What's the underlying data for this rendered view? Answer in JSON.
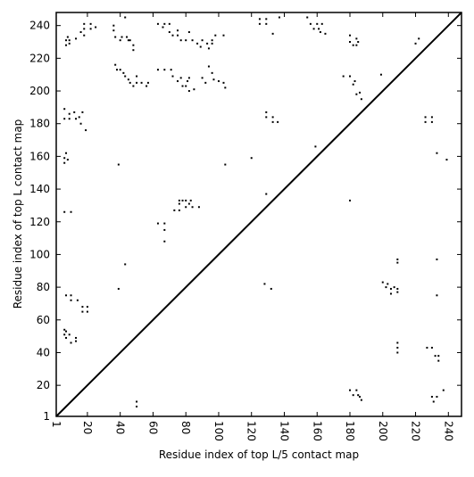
{
  "chart_data": {
    "type": "scatter",
    "xlabel": "Residue index of top L/5 contact map",
    "ylabel": "Residue index of top L contact map",
    "color": "#000000",
    "x": [
      7,
      7,
      8,
      9,
      9,
      13,
      16,
      18,
      18,
      18,
      22,
      22,
      25,
      36,
      36,
      37,
      40,
      41,
      44,
      45,
      43,
      48,
      48,
      46,
      63,
      66,
      67,
      70,
      70,
      72,
      75,
      75,
      77,
      80,
      82,
      84,
      87,
      89,
      90,
      93,
      94,
      96,
      96,
      98,
      103,
      37,
      38,
      40,
      42,
      43,
      45,
      46,
      48,
      50,
      50,
      53,
      56,
      57,
      63,
      67,
      71,
      72,
      75,
      77,
      78,
      80,
      81,
      82,
      82,
      85,
      90,
      92,
      94,
      96,
      97,
      100,
      103,
      104,
      6,
      9,
      9,
      12,
      13,
      15,
      16,
      17,
      19,
      6,
      7,
      6,
      8,
      6,
      39,
      104,
      120,
      6,
      10,
      63,
      67,
      67,
      67,
      73,
      76,
      76,
      78,
      80,
      82,
      84,
      88,
      76,
      80,
      83,
      43,
      39,
      7,
      10,
      10,
      14,
      17,
      17,
      20,
      20,
      6,
      6,
      7,
      7,
      9,
      10,
      13,
      13,
      50,
      50,
      125,
      125,
      129,
      129,
      133,
      137,
      154,
      156,
      158,
      160,
      161,
      162,
      165,
      163,
      129,
      129,
      133,
      133,
      136,
      129,
      128,
      132,
      159,
      180,
      180,
      182,
      184,
      184,
      185,
      176,
      180,
      182,
      183,
      184,
      186,
      187,
      199,
      180,
      220,
      222,
      226,
      226,
      230,
      230,
      233,
      239,
      200,
      202,
      203,
      205,
      205,
      207,
      209,
      209,
      209,
      209,
      233,
      233,
      209,
      209,
      209,
      227,
      230,
      232,
      234,
      234,
      180,
      182,
      184,
      185,
      186,
      187,
      230,
      233,
      231,
      237
    ],
    "values": [
      228,
      231,
      233,
      229,
      231,
      232,
      236,
      238,
      241,
      234,
      238,
      241,
      239,
      240,
      237,
      233,
      231,
      233,
      233,
      231,
      245,
      228,
      225,
      231,
      241,
      239,
      241,
      241,
      236,
      234,
      234,
      237,
      231,
      231,
      236,
      231,
      229,
      227,
      231,
      229,
      226,
      229,
      231,
      234,
      234,
      216,
      213,
      213,
      211,
      209,
      207,
      205,
      203,
      209,
      205,
      205,
      203,
      205,
      213,
      213,
      213,
      209,
      206,
      208,
      203,
      203,
      206,
      208,
      200,
      201,
      208,
      205,
      215,
      211,
      207,
      206,
      205,
      202,
      189,
      186,
      183,
      187,
      183,
      184,
      180,
      187,
      176,
      183,
      162,
      159,
      158,
      156,
      155,
      155,
      159,
      126,
      126,
      119,
      119,
      115,
      108,
      127,
      127,
      131,
      133,
      129,
      131,
      129,
      129,
      133,
      133,
      133,
      94,
      79,
      75,
      75,
      72,
      72,
      65,
      68,
      65,
      68,
      54,
      51,
      49,
      53,
      51,
      46,
      49,
      47,
      10,
      7,
      244,
      241,
      241,
      244,
      235,
      245,
      245,
      241,
      238,
      241,
      238,
      236,
      235,
      241,
      187,
      184,
      184,
      181,
      181,
      137,
      82,
      79,
      166,
      234,
      230,
      228,
      232,
      228,
      230,
      209,
      209,
      204,
      206,
      198,
      199,
      195,
      210,
      133,
      229,
      232,
      184,
      181,
      184,
      181,
      162,
      158,
      83,
      80,
      82,
      79,
      76,
      80,
      77,
      79,
      95,
      97,
      97,
      75,
      46,
      43,
      40,
      43,
      43,
      38,
      38,
      35,
      17,
      14,
      17,
      14,
      13,
      11,
      13,
      13,
      10,
      17
    ],
    "xlim": [
      1,
      248
    ],
    "ylim": [
      1,
      248
    ],
    "xticks": [
      1,
      20,
      40,
      60,
      80,
      100,
      120,
      140,
      160,
      180,
      200,
      220,
      240
    ],
    "yticks": [
      1,
      20,
      40,
      60,
      80,
      100,
      120,
      140,
      160,
      180,
      200,
      220,
      240
    ]
  }
}
